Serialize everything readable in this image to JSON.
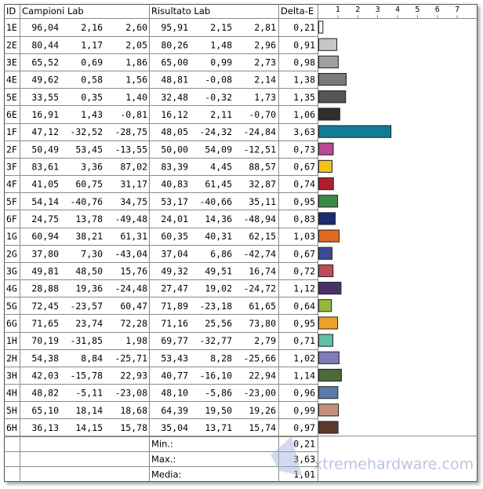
{
  "header": {
    "id": "ID",
    "campioni": "Campioni Lab",
    "risultato": "Risultato Lab",
    "delta": "Delta-E"
  },
  "rows": [
    {
      "id": "1E",
      "campioni": [
        "96,04",
        "2,16",
        "2,60"
      ],
      "risultato": [
        "95,91",
        "2,15",
        "2,81"
      ]
    },
    {
      "id": "2E",
      "campioni": [
        "80,44",
        "1,17",
        "2,05"
      ],
      "risultato": [
        "80,26",
        "1,48",
        "2,96"
      ]
    },
    {
      "id": "3E",
      "campioni": [
        "65,52",
        "0,69",
        "1,86"
      ],
      "risultato": [
        "65,00",
        "0,99",
        "2,73"
      ]
    },
    {
      "id": "4E",
      "campioni": [
        "49,62",
        "0,58",
        "1,56"
      ],
      "risultato": [
        "48,81",
        "-0,08",
        "2,14"
      ]
    },
    {
      "id": "5E",
      "campioni": [
        "33,55",
        "0,35",
        "1,40"
      ],
      "risultato": [
        "32,48",
        "-0,32",
        "1,73"
      ]
    },
    {
      "id": "6E",
      "campioni": [
        "16,91",
        "1,43",
        "-0,81"
      ],
      "risultato": [
        "16,12",
        "2,11",
        "-0,70"
      ]
    },
    {
      "id": "1F",
      "campioni": [
        "47,12",
        "-32,52",
        "-28,75"
      ],
      "risultato": [
        "48,05",
        "-24,32",
        "-24,84"
      ]
    },
    {
      "id": "2F",
      "campioni": [
        "50,49",
        "53,45",
        "-13,55"
      ],
      "risultato": [
        "50,00",
        "54,09",
        "-12,51"
      ]
    },
    {
      "id": "3F",
      "campioni": [
        "83,61",
        "3,36",
        "87,02"
      ],
      "risultato": [
        "83,39",
        "4,45",
        "88,57"
      ]
    },
    {
      "id": "4F",
      "campioni": [
        "41,05",
        "60,75",
        "31,17"
      ],
      "risultato": [
        "40,83",
        "61,45",
        "32,87"
      ]
    },
    {
      "id": "5F",
      "campioni": [
        "54,14",
        "-40,76",
        "34,75"
      ],
      "risultato": [
        "53,17",
        "-40,66",
        "35,11"
      ]
    },
    {
      "id": "6F",
      "campioni": [
        "24,75",
        "13,78",
        "-49,48"
      ],
      "risultato": [
        "24,01",
        "14,36",
        "-48,94"
      ]
    },
    {
      "id": "1G",
      "campioni": [
        "60,94",
        "38,21",
        "61,31"
      ],
      "risultato": [
        "60,35",
        "40,31",
        "62,15"
      ]
    },
    {
      "id": "2G",
      "campioni": [
        "37,80",
        "7,30",
        "-43,04"
      ],
      "risultato": [
        "37,04",
        "6,86",
        "-42,74"
      ]
    },
    {
      "id": "3G",
      "campioni": [
        "49,81",
        "48,50",
        "15,76"
      ],
      "risultato": [
        "49,32",
        "49,51",
        "16,74"
      ]
    },
    {
      "id": "4G",
      "campioni": [
        "28,88",
        "19,36",
        "-24,48"
      ],
      "risultato": [
        "27,47",
        "19,02",
        "-24,72"
      ]
    },
    {
      "id": "5G",
      "campioni": [
        "72,45",
        "-23,57",
        "60,47"
      ],
      "risultato": [
        "71,89",
        "-23,18",
        "61,65"
      ]
    },
    {
      "id": "6G",
      "campioni": [
        "71,65",
        "23,74",
        "72,28"
      ],
      "risultato": [
        "71,16",
        "25,56",
        "73,80"
      ]
    },
    {
      "id": "1H",
      "campioni": [
        "70,19",
        "-31,85",
        "1,98"
      ],
      "risultato": [
        "69,77",
        "-32,77",
        "2,79"
      ]
    },
    {
      "id": "2H",
      "campioni": [
        "54,38",
        "8,84",
        "-25,71"
      ],
      "risultato": [
        "53,43",
        "8,28",
        "-25,66"
      ]
    },
    {
      "id": "3H",
      "campioni": [
        "42,03",
        "-15,78",
        "22,93"
      ],
      "risultato": [
        "40,77",
        "-16,10",
        "22,94"
      ]
    },
    {
      "id": "4H",
      "campioni": [
        "48,82",
        "-5,11",
        "-23,08"
      ],
      "risultato": [
        "48,10",
        "-5,86",
        "-23,00"
      ]
    },
    {
      "id": "5H",
      "campioni": [
        "65,10",
        "18,14",
        "18,68"
      ],
      "risultato": [
        "64,39",
        "19,50",
        "19,26"
      ]
    },
    {
      "id": "6H",
      "campioni": [
        "36,13",
        "14,15",
        "15,78"
      ],
      "risultato": [
        "35,04",
        "13,71",
        "15,74"
      ]
    }
  ],
  "delta_chart": {
    "type": "bar",
    "values": [
      0.21,
      0.91,
      0.98,
      1.38,
      1.35,
      1.06,
      3.63,
      0.73,
      0.67,
      0.74,
      0.95,
      0.83,
      1.03,
      0.67,
      0.72,
      1.12,
      0.64,
      0.95,
      0.71,
      1.02,
      1.14,
      0.96,
      0.99,
      0.97
    ],
    "value_labels": [
      "0,21",
      "0,91",
      "0,98",
      "1,38",
      "1,35",
      "1,06",
      "3,63",
      "0,73",
      "0,67",
      "0,74",
      "0,95",
      "0,83",
      "1,03",
      "0,67",
      "0,72",
      "1,12",
      "0,64",
      "0,95",
      "0,71",
      "1,02",
      "1,14",
      "0,96",
      "0,99",
      "0,97"
    ],
    "colors": [
      "#f4f4f4",
      "#c8c6c4",
      "#a0a09e",
      "#7a7a7a",
      "#555555",
      "#2e2e2e",
      "#127b96",
      "#b84a92",
      "#f0c21e",
      "#b01e2e",
      "#3a8a48",
      "#1c2a6e",
      "#dd6b22",
      "#3a4c96",
      "#c04a56",
      "#4a3068",
      "#94b83a",
      "#eda02a",
      "#62c0a6",
      "#7d7cb8",
      "#4a6a38",
      "#5a7aa8",
      "#c4907c",
      "#5a3a2c"
    ],
    "xlim": [
      0,
      8
    ],
    "xticks": [
      1,
      2,
      3,
      4,
      5,
      6,
      7
    ]
  },
  "summary": [
    {
      "label": "Min.:",
      "value": "0,21"
    },
    {
      "label": "Max.:",
      "value": "3,63"
    },
    {
      "label": "Media:",
      "value": "1,01"
    }
  ],
  "watermark": "xtremehardware.com"
}
